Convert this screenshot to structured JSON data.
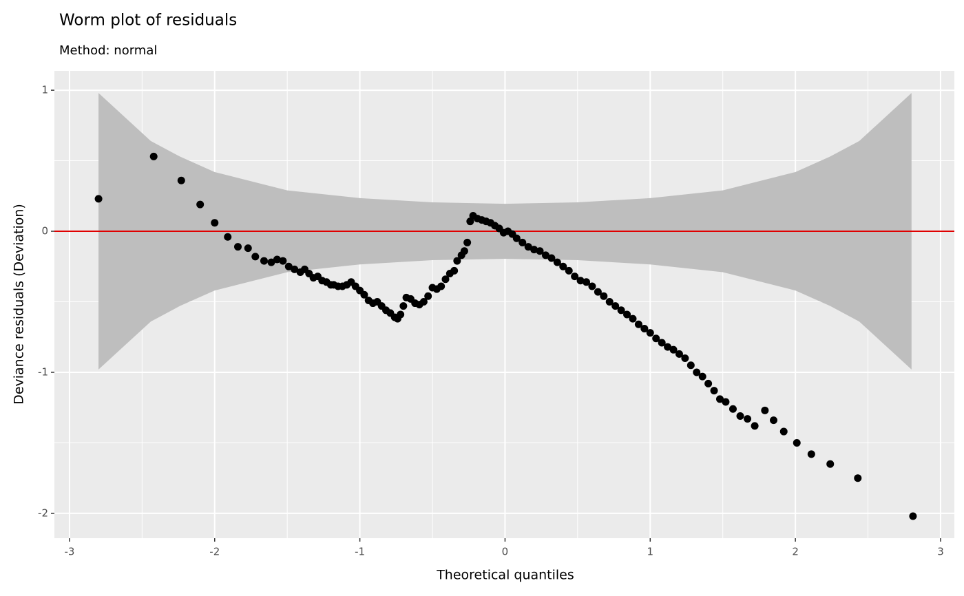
{
  "chart_data": {
    "type": "scatter",
    "title": "Worm plot of residuals",
    "subtitle": "Method: normal",
    "x_label": "Theoretical quantiles",
    "y_label": "Deviance residuals (Deviation)",
    "xlim": [
      -3.104,
      3.095
    ],
    "ylim": [
      -2.176,
      1.137
    ],
    "xticks": [
      -3,
      -2,
      -1,
      0,
      1,
      2,
      3
    ],
    "yticks": [
      -2,
      -1,
      0,
      1
    ],
    "xminor": [
      -2.5,
      -1.5,
      -0.5,
      0.5,
      1.5,
      2.5
    ],
    "yminor": [
      -1.5,
      -0.5,
      0.5
    ],
    "grid": true,
    "panel_color": "#ebebeb",
    "grid_color": "#ffffff",
    "color": "#000000",
    "reference_line": {
      "value": 0,
      "color": "#e00000"
    },
    "band": {
      "color": "#bebebe",
      "x": [
        -2.8,
        -2.44,
        -2.24,
        -2.0,
        -1.5,
        -1.0,
        -0.5,
        0,
        0.5,
        1.0,
        1.5,
        2.0,
        2.24,
        2.44,
        2.8
      ],
      "upper": [
        0.98,
        0.64,
        0.53,
        0.42,
        0.29,
        0.235,
        0.205,
        0.195,
        0.205,
        0.235,
        0.29,
        0.42,
        0.53,
        0.64,
        0.98
      ],
      "lower": [
        -0.98,
        -0.64,
        -0.53,
        -0.42,
        -0.29,
        -0.235,
        -0.205,
        -0.195,
        -0.205,
        -0.235,
        -0.29,
        -0.42,
        -0.53,
        -0.64,
        -0.98
      ]
    },
    "x": [
      -2.8,
      -2.42,
      -2.23,
      -2.1,
      -2.0,
      -1.91,
      -1.84,
      -1.77,
      -1.72,
      -1.66,
      -1.61,
      -1.57,
      -1.53,
      -1.49,
      -1.45,
      -1.41,
      -1.38,
      -1.35,
      -1.32,
      -1.29,
      -1.26,
      -1.23,
      -1.2,
      -1.18,
      -1.15,
      -1.12,
      -1.09,
      -1.06,
      -1.03,
      -1.0,
      -0.97,
      -0.94,
      -0.91,
      -0.88,
      -0.85,
      -0.82,
      -0.79,
      -0.76,
      -0.74,
      -0.72,
      -0.7,
      -0.68,
      -0.65,
      -0.62,
      -0.59,
      -0.56,
      -0.53,
      -0.5,
      -0.47,
      -0.44,
      -0.41,
      -0.38,
      -0.35,
      -0.33,
      -0.3,
      -0.28,
      -0.26,
      -0.24,
      -0.22,
      -0.19,
      -0.16,
      -0.13,
      -0.1,
      -0.07,
      -0.04,
      -0.01,
      0.02,
      0.05,
      0.08,
      0.12,
      0.16,
      0.2,
      0.24,
      0.28,
      0.32,
      0.36,
      0.4,
      0.44,
      0.48,
      0.52,
      0.56,
      0.6,
      0.64,
      0.68,
      0.72,
      0.76,
      0.8,
      0.84,
      0.88,
      0.92,
      0.96,
      1.0,
      1.04,
      1.08,
      1.12,
      1.16,
      1.2,
      1.24,
      1.28,
      1.32,
      1.36,
      1.4,
      1.44,
      1.48,
      1.52,
      1.57,
      1.62,
      1.67,
      1.72,
      1.79,
      1.85,
      1.92,
      2.01,
      2.11,
      2.24,
      2.43,
      2.81
    ],
    "values": [
      0.23,
      0.53,
      0.36,
      0.19,
      0.06,
      -0.04,
      -0.11,
      -0.12,
      -0.18,
      -0.21,
      -0.22,
      -0.2,
      -0.21,
      -0.25,
      -0.27,
      -0.29,
      -0.27,
      -0.3,
      -0.33,
      -0.32,
      -0.35,
      -0.36,
      -0.38,
      -0.38,
      -0.39,
      -0.39,
      -0.38,
      -0.36,
      -0.39,
      -0.42,
      -0.45,
      -0.49,
      -0.51,
      -0.5,
      -0.53,
      -0.56,
      -0.58,
      -0.61,
      -0.62,
      -0.59,
      -0.53,
      -0.47,
      -0.48,
      -0.51,
      -0.52,
      -0.5,
      -0.46,
      -0.4,
      -0.41,
      -0.39,
      -0.34,
      -0.3,
      -0.28,
      -0.21,
      -0.17,
      -0.14,
      -0.08,
      0.07,
      0.11,
      0.09,
      0.08,
      0.07,
      0.06,
      0.04,
      0.02,
      -0.01,
      0.0,
      -0.02,
      -0.05,
      -0.08,
      -0.11,
      -0.13,
      -0.14,
      -0.17,
      -0.19,
      -0.22,
      -0.25,
      -0.28,
      -0.32,
      -0.35,
      -0.36,
      -0.39,
      -0.43,
      -0.46,
      -0.5,
      -0.53,
      -0.56,
      -0.59,
      -0.62,
      -0.66,
      -0.69,
      -0.72,
      -0.76,
      -0.79,
      -0.82,
      -0.84,
      -0.87,
      -0.9,
      -0.95,
      -1.0,
      -1.03,
      -1.08,
      -1.13,
      -1.19,
      -1.21,
      -1.26,
      -1.31,
      -1.33,
      -1.38,
      -1.27,
      -1.34,
      -1.42,
      -1.5,
      -1.58,
      -1.65,
      -1.75,
      -2.02
    ]
  }
}
